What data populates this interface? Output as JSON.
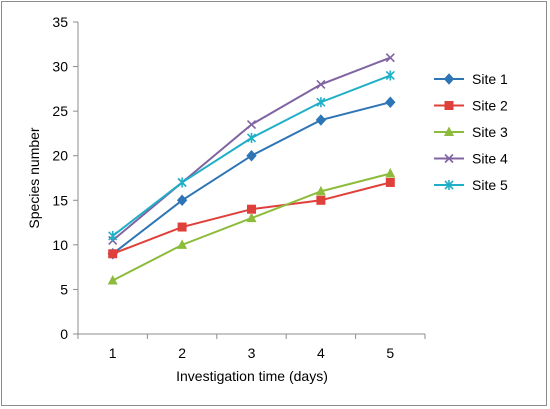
{
  "chart_data": {
    "type": "line",
    "title": "",
    "xlabel": "Investigation time (days)",
    "ylabel": "Species number",
    "x": [
      1,
      2,
      3,
      4,
      5
    ],
    "xlim": [
      0.5,
      5.5
    ],
    "ylim": [
      0,
      35
    ],
    "yticks": [
      0,
      5,
      10,
      15,
      20,
      25,
      30,
      35
    ],
    "grid": false,
    "legend_position": "right",
    "series": [
      {
        "name": "Site 1",
        "values": [
          9,
          15,
          20,
          24,
          26
        ],
        "color": "#2E75B6",
        "marker": "diamond"
      },
      {
        "name": "Site 2",
        "values": [
          9,
          12,
          14,
          15,
          17
        ],
        "color": "#E0403A",
        "marker": "square"
      },
      {
        "name": "Site 3",
        "values": [
          6,
          10,
          13,
          16,
          18
        ],
        "color": "#8DBB3C",
        "marker": "triangle"
      },
      {
        "name": "Site 4",
        "values": [
          10.5,
          17,
          23.5,
          28,
          31
        ],
        "color": "#8064A2",
        "marker": "x"
      },
      {
        "name": "Site 5",
        "values": [
          11,
          17,
          22,
          26,
          29
        ],
        "color": "#1FAFC8",
        "marker": "asterisk"
      }
    ]
  }
}
